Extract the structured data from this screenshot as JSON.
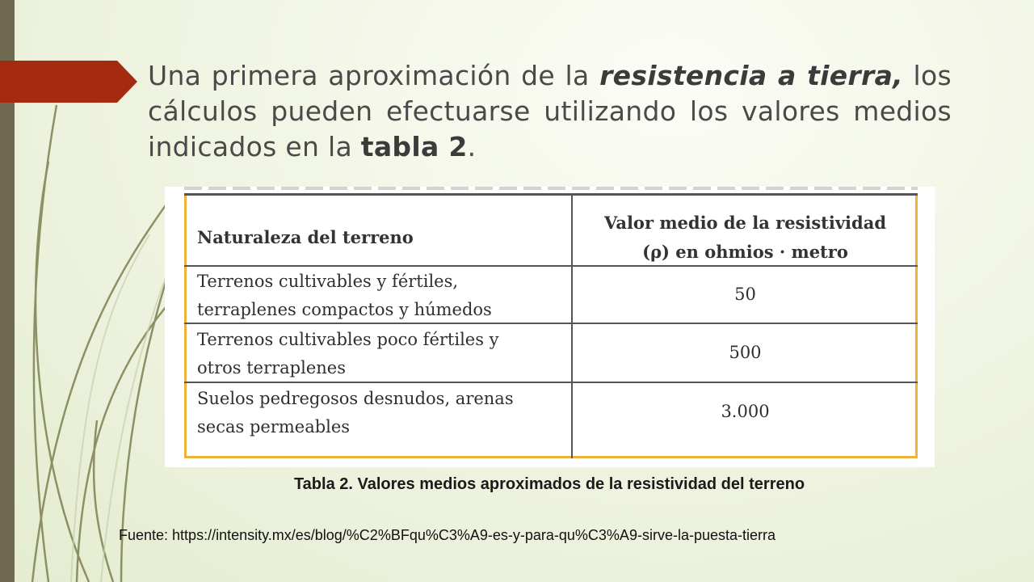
{
  "slide": {
    "heading_part1": "Una primera aproximación de la ",
    "heading_em": "resistencia a tierra,",
    "heading_part2": " los cálculos pueden efectuarse utilizando los valores medios indicados en la ",
    "heading_bold": "tabla 2",
    "heading_end": "."
  },
  "table": {
    "headers": {
      "col1": "Naturaleza del terreno",
      "col2_line1": "Valor medio de la resistividad",
      "col2_line2": "(ρ) en ohmios · metro"
    },
    "rows": [
      {
        "line1": "Terrenos cultivables y fértiles,",
        "line2": "terraplenes compactos y húmedos",
        "value": "50"
      },
      {
        "line1": "Terrenos cultivables poco fértiles y",
        "line2": "otros terraplenes",
        "value": "500"
      },
      {
        "line1": "Suelos pedregosos desnudos, arenas",
        "line2": "secas permeables",
        "value": "3.000"
      }
    ]
  },
  "caption": "Tabla 2. Valores medios aproximados de la resistividad del terreno",
  "source": "Fuente: https://intensity.mx/es/blog/%C2%BFqu%C3%A9-es-y-para-qu%C3%A9-sirve-la-puesta-tierra",
  "colors": {
    "accent": "#a52a12",
    "left_bar": "#6f6a4f",
    "table_border": "#f0b23a"
  }
}
